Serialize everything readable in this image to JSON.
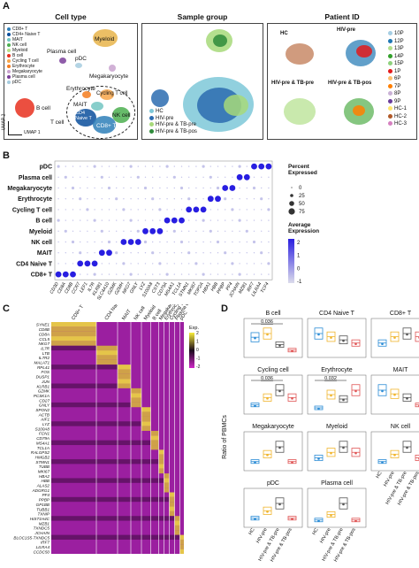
{
  "panel_a": {
    "letter": "A",
    "titles": {
      "cell_type": "Cell type",
      "sample_group": "Sample group",
      "patient_id": "Patient ID"
    },
    "cell_type_legend": [
      {
        "label": "CD8+ T",
        "color": "#2e7fb8"
      },
      {
        "label": "CD4+ Naive T",
        "color": "#0b4f9c"
      },
      {
        "label": "MAIT",
        "color": "#73c6c2"
      },
      {
        "label": "NK cell",
        "color": "#4caf50"
      },
      {
        "label": "Myeloid",
        "color": "#b8e08a"
      },
      {
        "label": "B cell",
        "color": "#e8301f"
      },
      {
        "label": "Cycling T cell",
        "color": "#f7a64a"
      },
      {
        "label": "Erythrocyte",
        "color": "#f57c1f"
      },
      {
        "label": "Megakaryocyte",
        "color": "#c9a3cf"
      },
      {
        "label": "Plasma cell",
        "color": "#7b3f9a"
      },
      {
        "label": "pDC",
        "color": "#a6ccdf"
      }
    ],
    "cluster_labels": {
      "myeloid": "Myeloid",
      "plasma": "Plasma cell",
      "pdc": "pDC",
      "mega": "Megakaryocyte",
      "ery": "Erythrocyte",
      "cycling": "Cycling T cell",
      "bcell": "B cell",
      "mait": "MAIT",
      "cd4": "CD4 Naive T",
      "tcell": "T cell",
      "nk": "NK cell",
      "cd8": "CD8+ T"
    },
    "umap1": "UMAP 1",
    "umap2": "UMAP 2",
    "sample_legend": [
      {
        "label": "HC",
        "color": "#7ec8d8"
      },
      {
        "label": "HIV-pre",
        "color": "#2b6cb0"
      },
      {
        "label": "HIV-pre & TB-pre",
        "color": "#a7d97a"
      },
      {
        "label": "HIV-pre & TB-pos",
        "color": "#2e8b3a"
      }
    ],
    "patient_groups": {
      "hc": "HC",
      "hiv": "HIV-pre",
      "hivtbpre": "HIV-pre & TB-pre",
      "hivtbpos": "HIV-pre & TB-pos"
    },
    "patient_legend": [
      {
        "label": "10P",
        "color": "#a6cee3"
      },
      {
        "label": "12P",
        "color": "#1f78b4"
      },
      {
        "label": "13P",
        "color": "#b2df8a"
      },
      {
        "label": "14P",
        "color": "#33a02c"
      },
      {
        "label": "15P",
        "color": "#8fd17e"
      },
      {
        "label": "1P",
        "color": "#e31a1c"
      },
      {
        "label": "6P",
        "color": "#fdbf6f"
      },
      {
        "label": "7P",
        "color": "#ff7f00"
      },
      {
        "label": "8P",
        "color": "#cab2d6"
      },
      {
        "label": "9P",
        "color": "#6a3d9a"
      },
      {
        "label": "HC-1",
        "color": "#ffe66d"
      },
      {
        "label": "HC-2",
        "color": "#b15928"
      },
      {
        "label": "HC-3",
        "color": "#d580c0"
      }
    ]
  },
  "panel_b": {
    "letter": "B",
    "rows": [
      "pDC",
      "Plasma cell",
      "Megakaryocyte",
      "Erythrocyte",
      "Cycling T cell",
      "B cell",
      "Myeloid",
      "NK cell",
      "MAIT",
      "CD4 Naive T",
      "CD8+ T"
    ],
    "genes": [
      "CD3D",
      "CD8A",
      "CD8B",
      "CCR7",
      "LEF1",
      "IL7R",
      "KLRB1",
      "SLC4A10",
      "GZMK",
      "GZMH",
      "NKG7",
      "GNLY",
      "LYZ",
      "S100A8",
      "CST3",
      "CD79A",
      "MS4A1",
      "TCL1A",
      "STMN1",
      "MKI67",
      "TOP2A",
      "HBA1",
      "HBB",
      "PPBP",
      "PF4",
      "JCHAIN",
      "MZB1",
      "IRF7",
      "LILRA4",
      "TCF4"
    ],
    "percent_legend_title": "Percent\nExpressed",
    "percent_values": [
      "0",
      "25",
      "50",
      "75"
    ],
    "avg_legend_title": "Average\nExpression",
    "avg_ticks": [
      "2",
      "1",
      "0",
      "-1"
    ]
  },
  "panel_c": {
    "letter": "C",
    "column_groups": [
      "CD8+ T",
      "CD4 Naive T",
      "MAIT",
      "NK cell",
      "Myeloid",
      "B cell",
      "Megakaryocyte",
      "Erythrocyte",
      "Cycling T cell",
      "Plasma cell",
      "pDC"
    ],
    "genes": [
      "SYNE1",
      "CD8B",
      "CD8A",
      "CCL5",
      "NKG7",
      "IL7R",
      "LTB",
      "IL7R2",
      "MALAT1",
      "RPL41",
      "FOS",
      "DUSP1",
      "JUN",
      "KLRB1",
      "GZMK",
      "PCSK1A",
      "CD27",
      "GNLY",
      "SPON2",
      "ACTB",
      "AIF1",
      "LYZ",
      "S100A8",
      "FCN1",
      "CD79A",
      "MS4A1",
      "TCL1A",
      "RALGPS2",
      "HMGB2",
      "STMN1",
      "TUBB",
      "MKI67",
      "HBA2",
      "HBB",
      "ALAS2",
      "ADGRG1",
      "PF4",
      "PPBP",
      "GP1BB",
      "TUBB1",
      "TXNIP",
      "HIST1H4C",
      "MZB1",
      "TXNDC5",
      "JCHAIN",
      "BLOC1S5-TXNDC5",
      "IRF7",
      "LILRA4",
      "CCDC50"
    ],
    "legend_title": "Exp.",
    "legend_ticks": [
      "2",
      "1",
      "0",
      "-1",
      "-2"
    ]
  },
  "panel_d": {
    "letter": "D",
    "ylabel": "Ratio of PBMCs",
    "groups": [
      "HC",
      "HIV-pre",
      "HIV-pre & TB-pre",
      "HIV-pre & TB-pos"
    ],
    "group_colors": [
      "#2b8cd6",
      "#f0b52d",
      "#555555",
      "#e05555"
    ],
    "subplots": [
      {
        "title": "B cell",
        "annotation": "0.036",
        "medians": [
          0.1,
          0.12,
          0.06,
          0.03
        ]
      },
      {
        "title": "CD4 Naive T",
        "annotation": "",
        "medians": [
          0.35,
          0.3,
          0.25,
          0.2
        ]
      },
      {
        "title": "CD8+ T",
        "annotation": "",
        "medians": [
          0.2,
          0.3,
          0.35,
          0.3
        ]
      },
      {
        "title": "Cycling cell",
        "annotation": "0.036",
        "medians": [
          0.01,
          0.02,
          0.03,
          0.02
        ]
      },
      {
        "title": "Erythrocyte",
        "annotation": "0.032",
        "medians": [
          0.01,
          0.04,
          0.03,
          0.05
        ]
      },
      {
        "title": "MAIT",
        "annotation": "",
        "medians": [
          0.06,
          0.05,
          0.04,
          0.02
        ]
      },
      {
        "title": "Megakaryocyte",
        "annotation": "",
        "medians": [
          0.01,
          0.02,
          0.03,
          0.01
        ]
      },
      {
        "title": "Myeloid",
        "annotation": "",
        "medians": [
          0.1,
          0.15,
          0.2,
          0.15
        ]
      },
      {
        "title": "NK cell",
        "annotation": "",
        "medians": [
          0.1,
          0.2,
          0.3,
          0.15
        ]
      },
      {
        "title": "pDC",
        "annotation": "",
        "medians": [
          0.01,
          0.02,
          0.03,
          0.01
        ]
      },
      {
        "title": "Plasma cell",
        "annotation": "",
        "medians": [
          0.01,
          0.02,
          0.04,
          0.01
        ]
      }
    ]
  }
}
